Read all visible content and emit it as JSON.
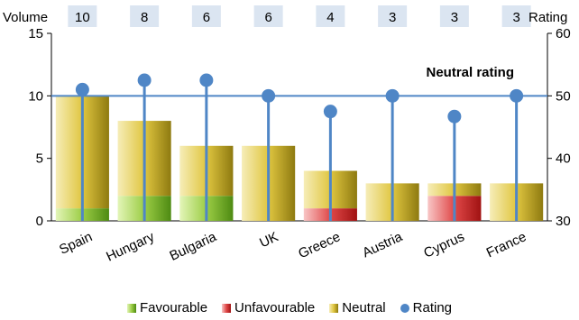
{
  "chart_data": {
    "type": "bar",
    "categories": [
      "Spain",
      "Hungary",
      "Bulgaria",
      "UK",
      "Greece",
      "Austria",
      "Cyprus",
      "France"
    ],
    "volume_labels": [
      "10",
      "8",
      "6",
      "6",
      "4",
      "3",
      "3",
      "3"
    ],
    "series": [
      {
        "name": "Favourable",
        "values": [
          1,
          2,
          2,
          0,
          0,
          0,
          0,
          0
        ]
      },
      {
        "name": "Unfavourable",
        "values": [
          0,
          0,
          0,
          0,
          1,
          0,
          2,
          0
        ]
      },
      {
        "name": "Neutral",
        "values": [
          9,
          6,
          4,
          6,
          3,
          3,
          1,
          3
        ]
      },
      {
        "name": "Rating",
        "values": [
          51,
          52.5,
          52.5,
          50,
          47.5,
          50,
          46.7,
          50
        ],
        "axis": "right"
      }
    ],
    "ylabel_left": "Volume",
    "ylabel_right": "Rating",
    "ylim_left": [
      0,
      15
    ],
    "ylim_right": [
      30,
      60
    ],
    "yticks_left": [
      0,
      5,
      10,
      15
    ],
    "yticks_right": [
      30,
      40,
      50,
      60
    ],
    "reference_line": {
      "value": 50,
      "axis": "right",
      "label": "Neutral rating"
    },
    "legend_position": "bottom",
    "colors": {
      "favourable": "#7dbb2a",
      "unfavourable": "#d42a2a",
      "neutral": "#c9b22a",
      "rating": "#4f86c6",
      "volume_box": "#dbe5f1"
    }
  },
  "legend": [
    {
      "label": "Favourable",
      "type": "bar-favourable"
    },
    {
      "label": "Unfavourable",
      "type": "bar-unfavourable"
    },
    {
      "label": "Neutral",
      "type": "bar-neutral"
    },
    {
      "label": "Rating",
      "type": "dot"
    }
  ]
}
